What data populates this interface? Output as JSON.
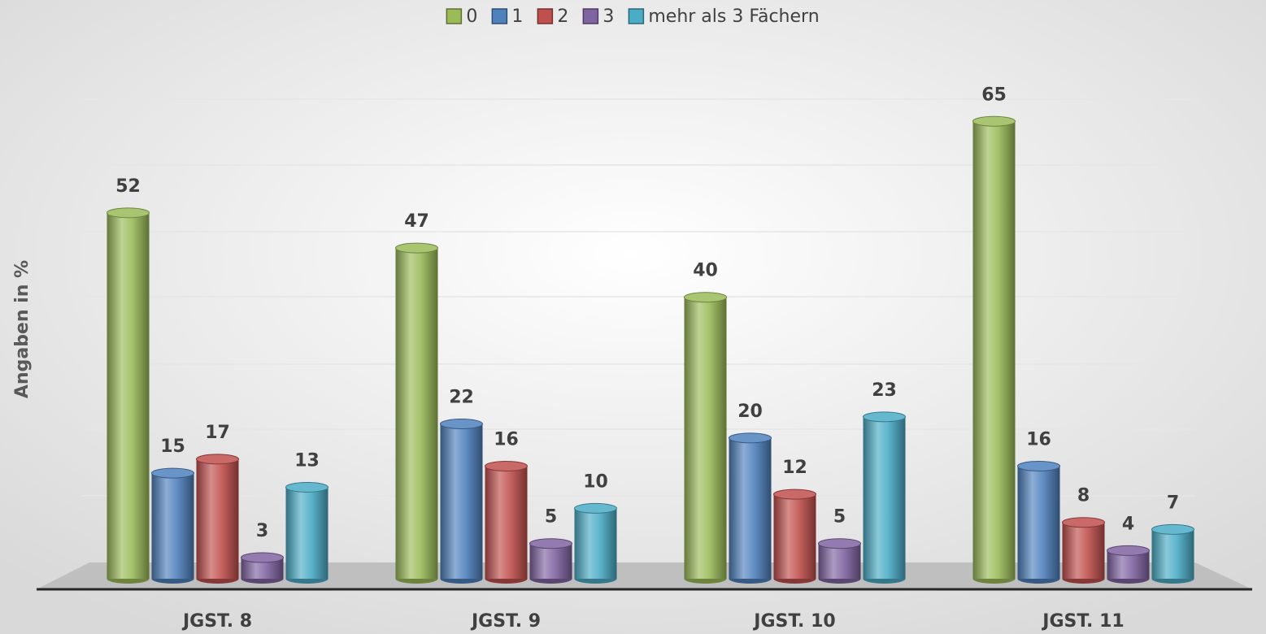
{
  "chart_data": {
    "type": "bar",
    "y_label": "Angaben in %",
    "categories": [
      "JGST. 8",
      "JGST. 9",
      "JGST. 10",
      "JGST. 11"
    ],
    "series": [
      {
        "name": "0",
        "color": "#9bbb59",
        "values": [
          52,
          47,
          40,
          65
        ]
      },
      {
        "name": "1",
        "color": "#4f81bd",
        "values": [
          15,
          22,
          20,
          16
        ]
      },
      {
        "name": "2",
        "color": "#c0504d",
        "values": [
          17,
          16,
          12,
          8
        ]
      },
      {
        "name": "3",
        "color": "#8064a2",
        "values": [
          3,
          5,
          5,
          4
        ]
      },
      {
        "name": "mehr als 3 Fächern",
        "color": "#4bacc6",
        "values": [
          13,
          10,
          23,
          7
        ]
      }
    ],
    "ylim": [
      0,
      70
    ],
    "legend": "top"
  }
}
